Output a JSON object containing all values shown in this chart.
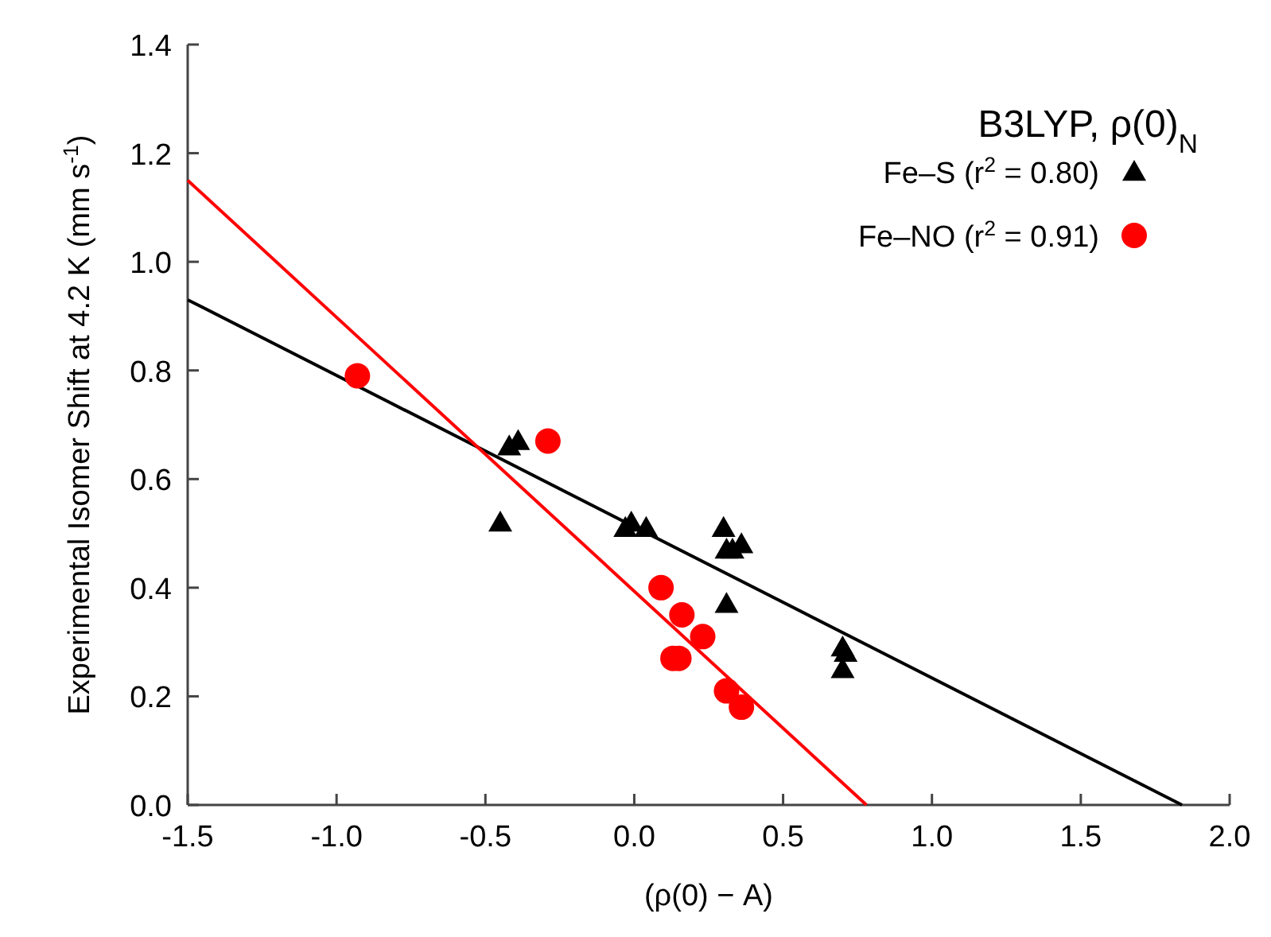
{
  "chart_data": {
    "type": "scatter",
    "title": "B3LYP, ρ(0)$_{N}$",
    "xlabel": "(ρ(0) − A)",
    "ylabel": "Experimental Isomer Shift at 4.2 K (mm s$^{-1}$)",
    "xlim": [
      -1.5,
      2.0
    ],
    "ylim": [
      0,
      1.4
    ],
    "xticks": [
      {
        "value": -1.5,
        "label": "-1.5"
      },
      {
        "value": -1,
        "label": "-1.0"
      },
      {
        "value": -0.5,
        "label": "-0.5"
      },
      {
        "value": 0,
        "label": "0.0"
      },
      {
        "value": 0.5,
        "label": "0.5"
      },
      {
        "value": 1,
        "label": "1.0"
      },
      {
        "value": 1.5,
        "label": "1.5"
      },
      {
        "value": 2,
        "label": "2.0"
      }
    ],
    "yticks": [
      {
        "value": 0,
        "label": "0.0"
      },
      {
        "value": 0.2,
        "label": "0.2"
      },
      {
        "value": 0.4,
        "label": "0.4"
      },
      {
        "value": 0.6,
        "label": "0.6"
      },
      {
        "value": 0.8,
        "label": "0.8"
      },
      {
        "value": 1,
        "label": "1.0"
      },
      {
        "value": 1.2,
        "label": "1.2"
      },
      {
        "value": 1.4,
        "label": "1.4"
      }
    ],
    "grid": false,
    "legend": "top right",
    "series": [
      {
        "type": "line",
        "color": "#000000",
        "x": [
          -1.5,
          1.84
        ],
        "values": [
          0.93,
          0.0
        ],
        "line_style": "solid",
        "marker": "none"
      },
      {
        "type": "line",
        "color": "#ff0000",
        "x": [
          -1.5,
          0.78
        ],
        "values": [
          1.15,
          0.0
        ],
        "line_style": "solid",
        "marker": "none"
      },
      {
        "name": "Fe–S (r$^{2}$ = 0.80)",
        "color": "#000000",
        "marker": "triangle",
        "x": [
          -0.45,
          -0.42,
          -0.39,
          -0.03,
          -0.01,
          0.04,
          0.3,
          0.31,
          0.33,
          0.36,
          0.31,
          0.7,
          0.71,
          0.7
        ],
        "values": [
          0.52,
          0.66,
          0.67,
          0.51,
          0.52,
          0.51,
          0.51,
          0.47,
          0.47,
          0.48,
          0.37,
          0.29,
          0.28,
          0.25
        ]
      },
      {
        "name": "Fe–NO (r$^{2}$ = 0.91)",
        "color": "#ff0000",
        "marker": "circle",
        "x": [
          -0.93,
          -0.29,
          0.09,
          0.16,
          0.23,
          0.13,
          0.15,
          0.31,
          0.36
        ],
        "values": [
          0.79,
          0.67,
          0.4,
          0.35,
          0.31,
          0.27,
          0.27,
          0.21,
          0.18
        ]
      }
    ]
  }
}
